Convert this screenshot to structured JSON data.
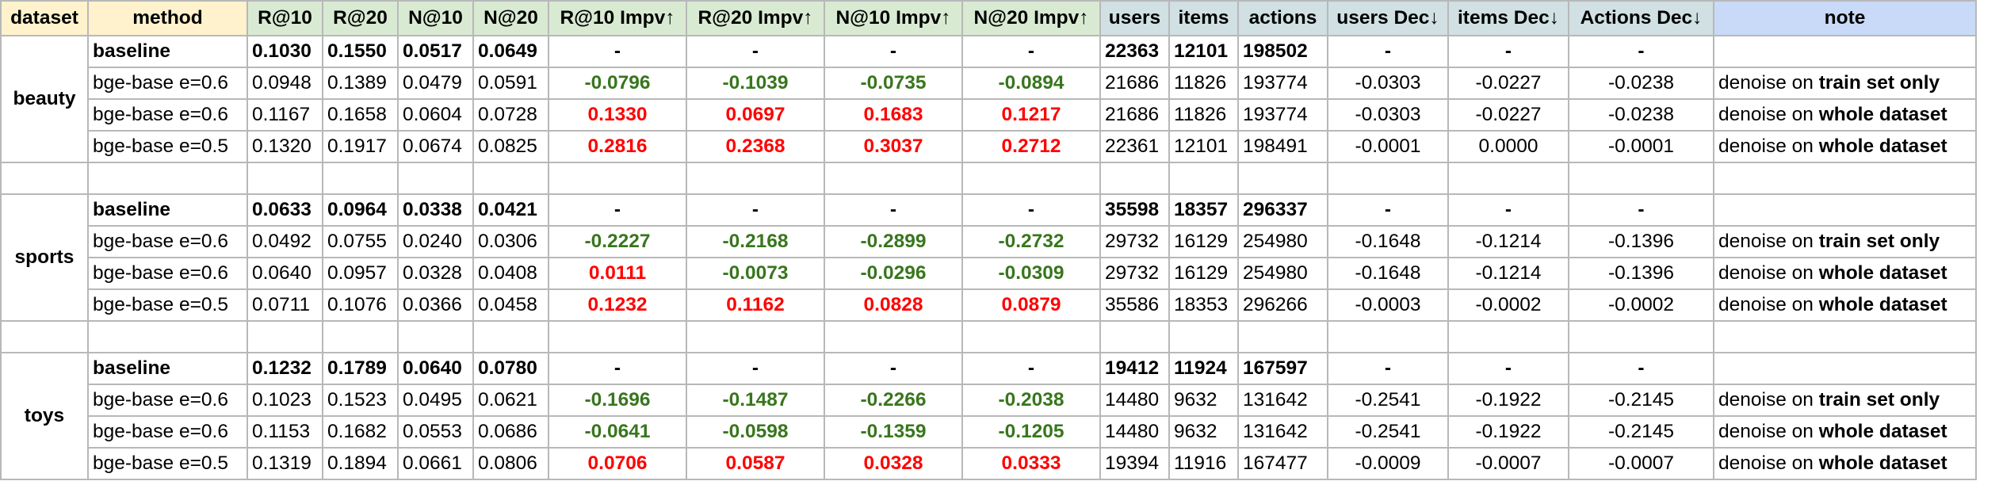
{
  "headers": {
    "dataset": "dataset",
    "method": "method",
    "r10": "R@10",
    "r20": "R@20",
    "n10": "N@10",
    "n20": "N@20",
    "r10_impv": "R@10 Impv↑",
    "r20_impv": "R@20 Impv↑",
    "n10_impv": "N@10 Impv↑",
    "n20_impv": "N@20 Impv↑",
    "users": "users",
    "items": "items",
    "actions": "actions",
    "users_dec": "users Dec↓",
    "items_dec": "items Dec↓",
    "actions_dec": "Actions Dec↓",
    "note": "note"
  },
  "colors": {
    "positive": "#ff0000",
    "negative": "#38761d",
    "header_dataset": "#fff2cc",
    "header_metric": "#d9ead3",
    "header_stat": "#d0e0e3",
    "header_note": "#c9daf8"
  },
  "groups": [
    {
      "dataset": "beauty",
      "rows": [
        {
          "method": "baseline",
          "r10": "0.1030",
          "r20": "0.1550",
          "n10": "0.0517",
          "n20": "0.0649",
          "r10_impv": "-",
          "r20_impv": "-",
          "n10_impv": "-",
          "n20_impv": "-",
          "users": "22363",
          "items": "12101",
          "actions": "198502",
          "users_dec": "-",
          "items_dec": "-",
          "actions_dec": "-",
          "note_pre": "",
          "note_bold": ""
        },
        {
          "method": "bge-base e=0.6",
          "r10": "0.0948",
          "r20": "0.1389",
          "n10": "0.0479",
          "n20": "0.0591",
          "r10_impv": "-0.0796",
          "r20_impv": "-0.1039",
          "n10_impv": "-0.0735",
          "n20_impv": "-0.0894",
          "users": "21686",
          "items": "11826",
          "actions": "193774",
          "users_dec": "-0.0303",
          "items_dec": "-0.0227",
          "actions_dec": "-0.0238",
          "note_pre": "denoise on ",
          "note_bold": "train set only"
        },
        {
          "method": "bge-base e=0.6",
          "r10": "0.1167",
          "r20": "0.1658",
          "n10": "0.0604",
          "n20": "0.0728",
          "r10_impv": "0.1330",
          "r20_impv": "0.0697",
          "n10_impv": "0.1683",
          "n20_impv": "0.1217",
          "users": "21686",
          "items": "11826",
          "actions": "193774",
          "users_dec": "-0.0303",
          "items_dec": "-0.0227",
          "actions_dec": "-0.0238",
          "note_pre": "denoise on ",
          "note_bold": "whole dataset"
        },
        {
          "method": "bge-base e=0.5",
          "r10": "0.1320",
          "r20": "0.1917",
          "n10": "0.0674",
          "n20": "0.0825",
          "r10_impv": "0.2816",
          "r20_impv": "0.2368",
          "n10_impv": "0.3037",
          "n20_impv": "0.2712",
          "users": "22361",
          "items": "12101",
          "actions": "198491",
          "users_dec": "-0.0001",
          "items_dec": "0.0000",
          "actions_dec": "-0.0001",
          "note_pre": "denoise on ",
          "note_bold": "whole dataset"
        }
      ]
    },
    {
      "dataset": "sports",
      "rows": [
        {
          "method": "baseline",
          "r10": "0.0633",
          "r20": "0.0964",
          "n10": "0.0338",
          "n20": "0.0421",
          "r10_impv": "-",
          "r20_impv": "-",
          "n10_impv": "-",
          "n20_impv": "-",
          "users": "35598",
          "items": "18357",
          "actions": "296337",
          "users_dec": "-",
          "items_dec": "-",
          "actions_dec": "-",
          "note_pre": "",
          "note_bold": ""
        },
        {
          "method": "bge-base e=0.6",
          "r10": "0.0492",
          "r20": "0.0755",
          "n10": "0.0240",
          "n20": "0.0306",
          "r10_impv": "-0.2227",
          "r20_impv": "-0.2168",
          "n10_impv": "-0.2899",
          "n20_impv": "-0.2732",
          "users": "29732",
          "items": "16129",
          "actions": "254980",
          "users_dec": "-0.1648",
          "items_dec": "-0.1214",
          "actions_dec": "-0.1396",
          "note_pre": "denoise on ",
          "note_bold": "train set only"
        },
        {
          "method": "bge-base e=0.6",
          "r10": "0.0640",
          "r20": "0.0957",
          "n10": "0.0328",
          "n20": "0.0408",
          "r10_impv": "0.0111",
          "r20_impv": "-0.0073",
          "n10_impv": "-0.0296",
          "n20_impv": "-0.0309",
          "users": "29732",
          "items": "16129",
          "actions": "254980",
          "users_dec": "-0.1648",
          "items_dec": "-0.1214",
          "actions_dec": "-0.1396",
          "note_pre": "denoise on ",
          "note_bold": "whole dataset"
        },
        {
          "method": "bge-base e=0.5",
          "r10": "0.0711",
          "r20": "0.1076",
          "n10": "0.0366",
          "n20": "0.0458",
          "r10_impv": "0.1232",
          "r20_impv": "0.1162",
          "n10_impv": "0.0828",
          "n20_impv": "0.0879",
          "users": "35586",
          "items": "18353",
          "actions": "296266",
          "users_dec": "-0.0003",
          "items_dec": "-0.0002",
          "actions_dec": "-0.0002",
          "note_pre": "denoise on ",
          "note_bold": "whole dataset"
        }
      ]
    },
    {
      "dataset": "toys",
      "rows": [
        {
          "method": "baseline",
          "r10": "0.1232",
          "r20": "0.1789",
          "n10": "0.0640",
          "n20": "0.0780",
          "r10_impv": "-",
          "r20_impv": "-",
          "n10_impv": "-",
          "n20_impv": "-",
          "users": "19412",
          "items": "11924",
          "actions": "167597",
          "users_dec": "-",
          "items_dec": "-",
          "actions_dec": "-",
          "note_pre": "",
          "note_bold": ""
        },
        {
          "method": "bge-base e=0.6",
          "r10": "0.1023",
          "r20": "0.1523",
          "n10": "0.0495",
          "n20": "0.0621",
          "r10_impv": "-0.1696",
          "r20_impv": "-0.1487",
          "n10_impv": "-0.2266",
          "n20_impv": "-0.2038",
          "users": "14480",
          "items": "9632",
          "actions": "131642",
          "users_dec": "-0.2541",
          "items_dec": "-0.1922",
          "actions_dec": "-0.2145",
          "note_pre": "denoise on ",
          "note_bold": "train set only"
        },
        {
          "method": "bge-base e=0.6",
          "r10": "0.1153",
          "r20": "0.1682",
          "n10": "0.0553",
          "n20": "0.0686",
          "r10_impv": "-0.0641",
          "r20_impv": "-0.0598",
          "n10_impv": "-0.1359",
          "n20_impv": "-0.1205",
          "users": "14480",
          "items": "9632",
          "actions": "131642",
          "users_dec": "-0.2541",
          "items_dec": "-0.1922",
          "actions_dec": "-0.2145",
          "note_pre": "denoise on ",
          "note_bold": "whole dataset"
        },
        {
          "method": "bge-base e=0.5",
          "r10": "0.1319",
          "r20": "0.1894",
          "n10": "0.0661",
          "n20": "0.0806",
          "r10_impv": "0.0706",
          "r20_impv": "0.0587",
          "n10_impv": "0.0328",
          "n20_impv": "0.0333",
          "users": "19394",
          "items": "11916",
          "actions": "167477",
          "users_dec": "-0.0009",
          "items_dec": "-0.0007",
          "actions_dec": "-0.0007",
          "note_pre": "denoise on ",
          "note_bold": "whole dataset"
        }
      ]
    }
  ]
}
